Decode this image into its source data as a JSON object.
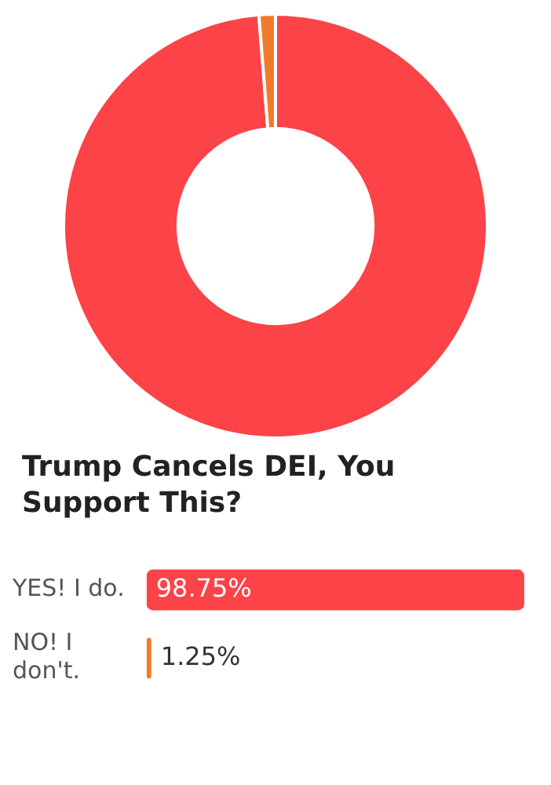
{
  "chart_data": [
    {
      "type": "donut",
      "categories": [
        null,
        null
      ],
      "values": [
        98.75,
        1.25
      ],
      "colors": [
        "#fb4348",
        "#f27b2b"
      ],
      "legend": false
    },
    {
      "type": "bar",
      "orientation": "horizontal",
      "title": "Trump Cancels DEI, You Support This?",
      "categories": [
        "YES! I do.",
        "NO! I don't."
      ],
      "values": [
        98.75,
        1.25
      ],
      "colors": [
        "#fb4348",
        "#f27b2b"
      ],
      "value_labels": [
        "98.75%",
        "1.25%"
      ],
      "xlim": [
        0,
        100
      ],
      "tick_labels": "y",
      "legend": false
    }
  ]
}
